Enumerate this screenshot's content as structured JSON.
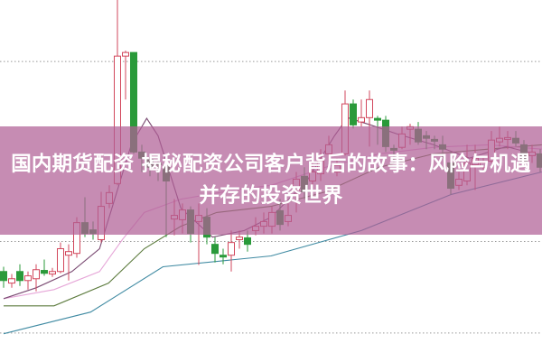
{
  "title": "国内期货配资 揭秘配资公司客户背后的故事：风险与机遇并存的投资世界",
  "colors": {
    "banner": "#b06096",
    "up": "#d2475c",
    "down": "#2a9a3a",
    "grid": "#999999",
    "ma_purple": "#7a4a72",
    "ma_pink": "#e6a6d8",
    "ma_green": "#5b7a3c",
    "ma_teal": "#3f8aa2"
  },
  "chart_data": {
    "type": "candlestick",
    "ylim": [
      0,
      100
    ],
    "grid": "horizontal dotted",
    "gridlines": [
      83,
      33.3,
      8
    ],
    "candles_ohlc": [
      [
        25,
        26.3,
        20.5,
        22.5
      ],
      [
        21.8,
        24.3,
        20.5,
        23
      ],
      [
        25,
        27,
        21,
        22.5
      ],
      [
        22.5,
        25,
        20,
        23.8
      ],
      [
        23,
        27,
        19.5,
        25.5
      ],
      [
        25.3,
        28.3,
        23.8,
        24.5
      ],
      [
        24.3,
        26,
        23.5,
        25
      ],
      [
        25,
        33,
        24.5,
        31.3
      ],
      [
        29.5,
        32.5,
        22.5,
        30.5
      ],
      [
        30,
        40,
        28.8,
        38.5
      ],
      [
        38.5,
        45.5,
        34.5,
        35.5
      ],
      [
        36.5,
        38.8,
        33.8,
        35.5
      ],
      [
        33.8,
        47,
        33,
        43
      ],
      [
        43.8,
        48.8,
        42.5,
        46.8
      ],
      [
        49.3,
        100,
        48.8,
        84.5
      ],
      [
        84.5,
        86,
        72.5,
        85.5
      ],
      [
        85.5,
        85.5,
        57.5,
        58
      ],
      [
        58,
        60,
        52.5,
        56.3
      ],
      [
        56,
        57.5,
        51.3,
        53.8
      ],
      [
        55,
        57.5,
        50,
        54.5
      ],
      [
        54.3,
        56.3,
        34.5,
        50
      ],
      [
        39.5,
        45,
        35,
        40.5
      ],
      [
        39.3,
        43.8,
        35.5,
        42
      ],
      [
        42,
        43,
        33,
        35.5
      ],
      [
        38.8,
        43.8,
        26.8,
        40.5
      ],
      [
        40,
        42.5,
        32.5,
        34.5
      ],
      [
        32.5,
        34.5,
        27.5,
        30
      ],
      [
        29.5,
        31.3,
        27,
        29
      ],
      [
        29.5,
        36.3,
        25,
        33
      ],
      [
        33.8,
        36.3,
        31.3,
        34.5
      ],
      [
        34.3,
        36.3,
        30.5,
        32.5
      ],
      [
        36.3,
        40,
        35,
        37.5
      ],
      [
        37.5,
        41.3,
        35.5,
        38.8
      ],
      [
        37.5,
        43,
        35.5,
        41.3
      ],
      [
        41.8,
        45,
        36.3,
        38
      ],
      [
        38.8,
        43.8,
        37.5,
        40.5
      ],
      [
        47.5,
        52.5,
        41.3,
        50.5
      ],
      [
        51.3,
        53.8,
        45,
        47
      ],
      [
        50,
        55,
        47,
        52.5
      ],
      [
        52,
        58.8,
        50,
        55.5
      ],
      [
        57.5,
        62.5,
        53,
        60
      ],
      [
        52.5,
        56.3,
        51.3,
        54.3
      ],
      [
        57.5,
        75,
        57,
        71.3
      ],
      [
        71.3,
        72.5,
        64.5,
        65.5
      ],
      [
        66.3,
        72.5,
        65,
        67.5
      ],
      [
        67.5,
        75,
        59.5,
        72.5
      ],
      [
        67.3,
        68,
        60,
        66.8
      ],
      [
        66.8,
        68,
        58,
        59.5
      ],
      [
        59,
        60,
        55,
        58.5
      ],
      [
        59.3,
        65,
        58.8,
        63
      ],
      [
        64.3,
        65.8,
        60,
        65
      ],
      [
        64.3,
        66.3,
        60,
        60.8
      ],
      [
        62.5,
        63.8,
        58.8,
        61.8
      ],
      [
        61.5,
        62.5,
        58.8,
        61
      ],
      [
        60,
        62.5,
        56.3,
        58.8
      ],
      [
        55,
        58,
        46.3,
        48
      ],
      [
        48.8,
        52.5,
        47.5,
        50.5
      ],
      [
        50,
        60,
        48.8,
        55
      ],
      [
        54.5,
        60,
        47.5,
        56.3
      ],
      [
        53.8,
        56.3,
        53,
        55
      ],
      [
        55.5,
        63.8,
        55,
        61.3
      ],
      [
        60.8,
        65,
        59.5,
        61.8
      ],
      [
        61.5,
        63.8,
        58.8,
        62
      ],
      [
        61.8,
        63.8,
        59.5,
        60.5
      ],
      [
        60,
        61.3,
        55,
        55.5
      ],
      [
        57,
        60,
        55,
        58
      ],
      [
        57.5,
        58.8,
        52.5,
        53.8
      ]
    ],
    "moving_averages": [
      {
        "color_key": "ma_teal",
        "points": [
          [
            0,
            7.8
          ],
          [
            10.7,
            13.8
          ],
          [
            19.6,
            26.3
          ],
          [
            32.9,
            29.3
          ],
          [
            44,
            36.3
          ],
          [
            55.1,
            46.3
          ],
          [
            66.2,
            52.5
          ]
        ]
      },
      {
        "color_key": "ma_green",
        "points": [
          [
            0,
            15.5
          ],
          [
            6.2,
            15.5
          ],
          [
            12.9,
            21.8
          ],
          [
            17.3,
            31.3
          ],
          [
            21.8,
            37.5
          ],
          [
            26.2,
            41.3
          ],
          [
            32.9,
            43
          ],
          [
            39.6,
            47
          ],
          [
            46.2,
            53.8
          ],
          [
            52.9,
            57.5
          ],
          [
            59.6,
            58.8
          ],
          [
            66.2,
            60
          ]
        ]
      },
      {
        "color_key": "ma_pink",
        "points": [
          [
            0,
            17.5
          ],
          [
            6.2,
            20
          ],
          [
            11.8,
            25
          ],
          [
            14.6,
            33.8
          ],
          [
            17.3,
            41.3
          ],
          [
            21.8,
            45
          ],
          [
            28.4,
            47.5
          ],
          [
            32.9,
            48.8
          ],
          [
            39.6,
            53.8
          ],
          [
            46.2,
            57.5
          ],
          [
            52.9,
            59.3
          ],
          [
            59.6,
            60
          ],
          [
            66.2,
            58.8
          ]
        ]
      },
      {
        "color_key": "ma_purple",
        "points": [
          [
            0,
            17.5
          ],
          [
            4,
            20.5
          ],
          [
            8.4,
            25
          ],
          [
            11.8,
            31.3
          ],
          [
            14,
            47.5
          ],
          [
            15.7,
            60
          ],
          [
            17.6,
            67.3
          ],
          [
            19,
            62.5
          ],
          [
            21.8,
            42.5
          ],
          [
            25.7,
            34.5
          ],
          [
            29.6,
            36.3
          ],
          [
            32.9,
            40
          ],
          [
            37.3,
            50
          ],
          [
            40.7,
            62.5
          ],
          [
            42.3,
            67.5
          ],
          [
            45.1,
            65.5
          ],
          [
            48.4,
            63
          ],
          [
            52.9,
            60
          ],
          [
            57.3,
            56.3
          ],
          [
            61.8,
            59.5
          ],
          [
            66.2,
            57
          ]
        ]
      }
    ]
  }
}
